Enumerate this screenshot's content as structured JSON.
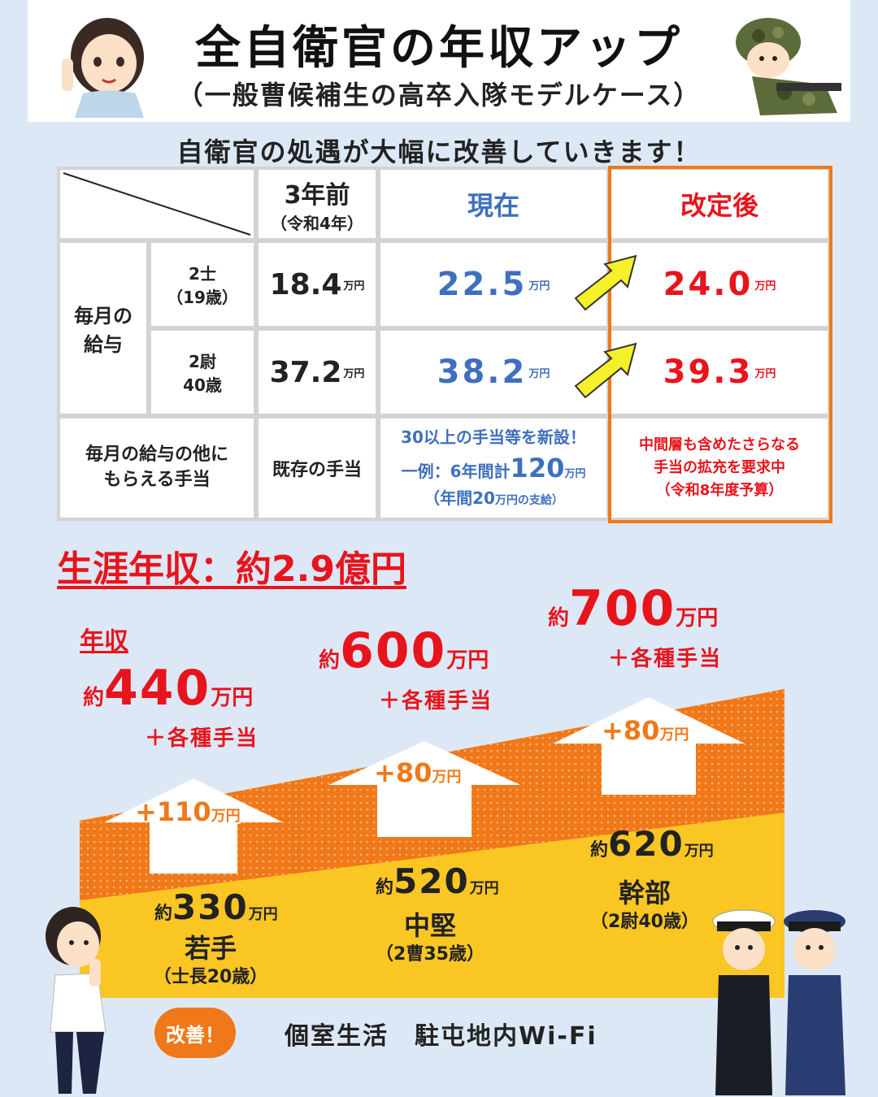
{
  "header": {
    "title": "全自衛官の年収アップ",
    "subtitle": "（一般曹候補生の高卒入隊モデルケース）"
  },
  "lead": "自衛官の処遇が大幅に改善していきます！",
  "table": {
    "columns": {
      "prev": {
        "label": "3年前",
        "sub": "（令和4年）"
      },
      "now": {
        "label": "現在"
      },
      "revised": {
        "label": "改定後"
      }
    },
    "monthly_salary_label": "毎月の\n給与",
    "rows": [
      {
        "rank": "2士",
        "age": "（19歳）",
        "prev": "18.4",
        "now": "22.5",
        "revised": "24.0",
        "unit": "万円"
      },
      {
        "rank": "2尉",
        "age": "40歳",
        "prev": "37.2",
        "now": "38.2",
        "revised": "39.3",
        "unit": "万円"
      }
    ],
    "allowance": {
      "label_line1": "毎月の給与の他に",
      "label_line2": "もらえる手当",
      "prev": "既存の手当",
      "now_line1": "30以上の手当等を新設！",
      "now_line2_pre": "一例：6年間計",
      "now_line2_num": "120",
      "now_line2_unit": "万円",
      "now_line3_pre": "（年間",
      "now_line3_num": "20",
      "now_line3_post": "万円の支給）",
      "revised_line1": "中間層も含めたさらなる",
      "revised_line2": "手当の拡充を要求中",
      "revised_line3": "（令和8年度予算）"
    }
  },
  "lifetime": "生涯年収：約2.9億円",
  "income_label": "年収",
  "stages": [
    {
      "prefix": "約",
      "after": "440",
      "unit": "万円",
      "allowance": "＋各種手当",
      "increase": "+110",
      "increase_unit": "万円",
      "before": "330",
      "rank": "若手",
      "age": "（士長20歳）"
    },
    {
      "prefix": "約",
      "after": "600",
      "unit": "万円",
      "allowance": "＋各種手当",
      "increase": "+80",
      "increase_unit": "万円",
      "before": "520",
      "rank": "中堅",
      "age": "（2曹35歳）"
    },
    {
      "prefix": "約",
      "after": "700",
      "unit": "万円",
      "allowance": "＋各種手当",
      "increase": "+80",
      "increase_unit": "万円",
      "before": "620",
      "rank": "幹部",
      "age": "（2尉40歳）"
    }
  ],
  "improve": {
    "badge": "改善！",
    "items": "個室生活　駐屯地内Wi-Fi"
  },
  "colors": {
    "background": "#dde8f6",
    "red": "#e8141c",
    "blue": "#3f6fbf",
    "orange": "#f07818",
    "yellow": "#f9c623",
    "arrow_yellow": "#f4f02a"
  }
}
